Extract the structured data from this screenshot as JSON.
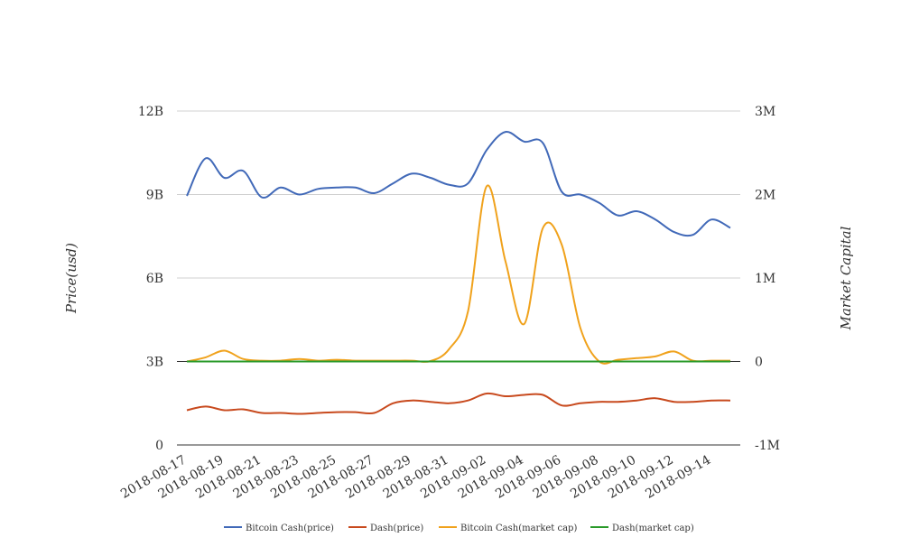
{
  "chart_data": {
    "type": "line",
    "x": [
      "2018-08-17",
      "2018-08-18",
      "2018-08-19",
      "2018-08-20",
      "2018-08-21",
      "2018-08-22",
      "2018-08-23",
      "2018-08-24",
      "2018-08-25",
      "2018-08-26",
      "2018-08-27",
      "2018-08-28",
      "2018-08-29",
      "2018-08-30",
      "2018-08-31",
      "2018-09-01",
      "2018-09-02",
      "2018-09-03",
      "2018-09-04",
      "2018-09-05",
      "2018-09-06",
      "2018-09-07",
      "2018-09-08",
      "2018-09-09",
      "2018-09-10",
      "2018-09-11",
      "2018-09-12",
      "2018-09-13",
      "2018-09-14",
      "2018-09-15"
    ],
    "x_tick_labels": [
      "2018-08-17",
      "2018-08-19",
      "2018-08-21",
      "2018-08-23",
      "2018-08-25",
      "2018-08-27",
      "2018-08-29",
      "2018-08-31",
      "2018-09-02",
      "2018-09-04",
      "2018-09-06",
      "2018-09-08",
      "2018-09-10",
      "2018-09-12",
      "2018-09-14"
    ],
    "y_left": {
      "label": "Price(usd)",
      "range": [
        0,
        12000000000
      ],
      "ticks": [
        0,
        3000000000,
        6000000000,
        9000000000,
        12000000000
      ],
      "tick_labels": [
        "0",
        "3B",
        "6B",
        "9B",
        "12B"
      ]
    },
    "y_right": {
      "label": "Market Capital",
      "range": [
        -1000000,
        3000000
      ],
      "ticks": [
        -1000000,
        0,
        1000000,
        2000000,
        3000000
      ],
      "tick_labels": [
        "-1M",
        "0",
        "1M",
        "2M",
        "3M"
      ]
    },
    "series": [
      {
        "name": "Bitcoin Cash(price)",
        "axis": "left",
        "color": "#4169b8",
        "values": [
          8950000000.0,
          10300000000.0,
          9600000000.0,
          9850000000.0,
          8900000000.0,
          9250000000.0,
          9000000000.0,
          9200000000.0,
          9250000000.0,
          9250000000.0,
          9050000000.0,
          9400000000.0,
          9750000000.0,
          9600000000.0,
          9350000000.0,
          9400000000.0,
          10600000000.0,
          11250000000.0,
          10900000000.0,
          10850000000.0,
          9100000000.0,
          9000000000.0,
          8700000000.0,
          8250000000.0,
          8400000000.0,
          8100000000.0,
          7650000000.0,
          7550000000.0,
          8100000000.0,
          7800000000.0
        ]
      },
      {
        "name": "Dash(price)",
        "axis": "left",
        "color": "#c84a1e",
        "values": [
          1250000000.0,
          1380000000.0,
          1250000000.0,
          1280000000.0,
          1150000000.0,
          1150000000.0,
          1120000000.0,
          1150000000.0,
          1180000000.0,
          1180000000.0,
          1150000000.0,
          1500000000.0,
          1600000000.0,
          1550000000.0,
          1500000000.0,
          1600000000.0,
          1850000000.0,
          1750000000.0,
          1800000000.0,
          1800000000.0,
          1420000000.0,
          1500000000.0,
          1550000000.0,
          1550000000.0,
          1600000000.0,
          1680000000.0,
          1550000000.0,
          1550000000.0,
          1600000000.0,
          1600000000.0
        ]
      },
      {
        "name": "Bitcoin Cash(market cap)",
        "axis": "right",
        "color": "#f0a21c",
        "values": [
          0,
          50000,
          130000,
          30000,
          10000,
          10000,
          30000,
          10000,
          20000,
          10000,
          10000,
          10000,
          10000,
          5000,
          150000,
          600000,
          2100000,
          1200000,
          450000,
          1600000,
          1400000,
          400000,
          0,
          20000,
          40000,
          60000,
          120000,
          10000,
          10000,
          10000
        ]
      },
      {
        "name": "Dash(market cap)",
        "axis": "right",
        "color": "#2a9a2a",
        "values": [
          0,
          0,
          0,
          0,
          0,
          0,
          0,
          0,
          0,
          0,
          0,
          0,
          0,
          0,
          0,
          0,
          0,
          0,
          0,
          0,
          0,
          0,
          0,
          0,
          0,
          0,
          0,
          0,
          0,
          0
        ]
      }
    ],
    "grid": true,
    "legend_position": "bottom"
  }
}
